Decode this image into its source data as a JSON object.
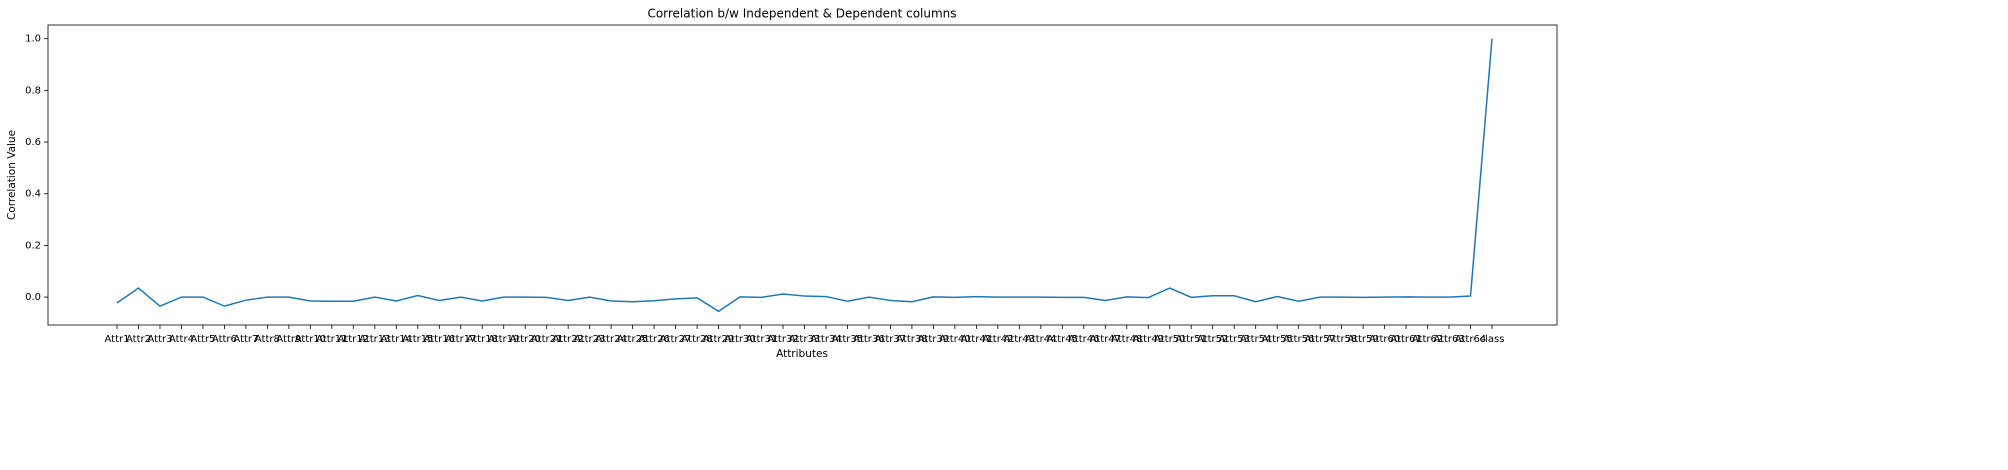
{
  "chart_data": {
    "type": "line",
    "title": "Correlation b/w Independent & Dependent columns",
    "xlabel": "Attributes",
    "ylabel": "Correlation Value",
    "categories": [
      "Attr1",
      "Attr2",
      "Attr3",
      "Attr4",
      "Attr5",
      "Attr6",
      "Attr7",
      "Attr8",
      "Attr9",
      "Attr10",
      "Attr11",
      "Attr12",
      "Attr13",
      "Attr14",
      "Attr15",
      "Attr16",
      "Attr17",
      "Attr18",
      "Attr19",
      "Attr20",
      "Attr21",
      "Attr22",
      "Attr23",
      "Attr24",
      "Attr25",
      "Attr26",
      "Attr27",
      "Attr28",
      "Attr29",
      "Attr30",
      "Attr31",
      "Attr32",
      "Attr33",
      "Attr34",
      "Attr35",
      "Attr36",
      "Attr37",
      "Attr38",
      "Attr39",
      "Attr40",
      "Attr41",
      "Attr42",
      "Attr43",
      "Attr44",
      "Attr45",
      "Attr46",
      "Attr47",
      "Attr48",
      "Attr49",
      "Attr50",
      "Attr51",
      "Attr52",
      "Attr53",
      "Attr54",
      "Attr55",
      "Attr56",
      "Attr57",
      "Attr58",
      "Attr59",
      "Attr60",
      "Attr61",
      "Attr62",
      "Attr63",
      "Attr64",
      "class"
    ],
    "values": [
      -0.023,
      0.035,
      -0.035,
      0.0,
      0.0,
      -0.035,
      -0.012,
      0.0,
      0.0,
      -0.015,
      -0.016,
      -0.016,
      0.0,
      -0.015,
      0.006,
      -0.013,
      0.0,
      -0.015,
      0.0,
      0.0,
      -0.001,
      -0.013,
      0.0,
      -0.015,
      -0.018,
      -0.014,
      -0.007,
      -0.003,
      -0.055,
      0.001,
      -0.001,
      0.012,
      0.004,
      0.002,
      -0.016,
      0.0,
      -0.013,
      -0.018,
      0.001,
      -0.001,
      0.002,
      0.0,
      0.0,
      0.0,
      -0.001,
      -0.001,
      -0.013,
      0.001,
      -0.002,
      0.035,
      -0.001,
      0.005,
      0.005,
      -0.018,
      0.002,
      -0.016,
      0.0,
      0.0,
      -0.001,
      0.0,
      0.001,
      0.0,
      0.0,
      0.004,
      1.0
    ],
    "color": "#1f77b4",
    "ylim": [
      -0.108,
      1.053
    ],
    "yticks": [
      {
        "value": 0,
        "label": "0.0"
      },
      0.2,
      0.4,
      0.6,
      0.8,
      {
        "value": 1,
        "label": "1.0"
      }
    ]
  }
}
